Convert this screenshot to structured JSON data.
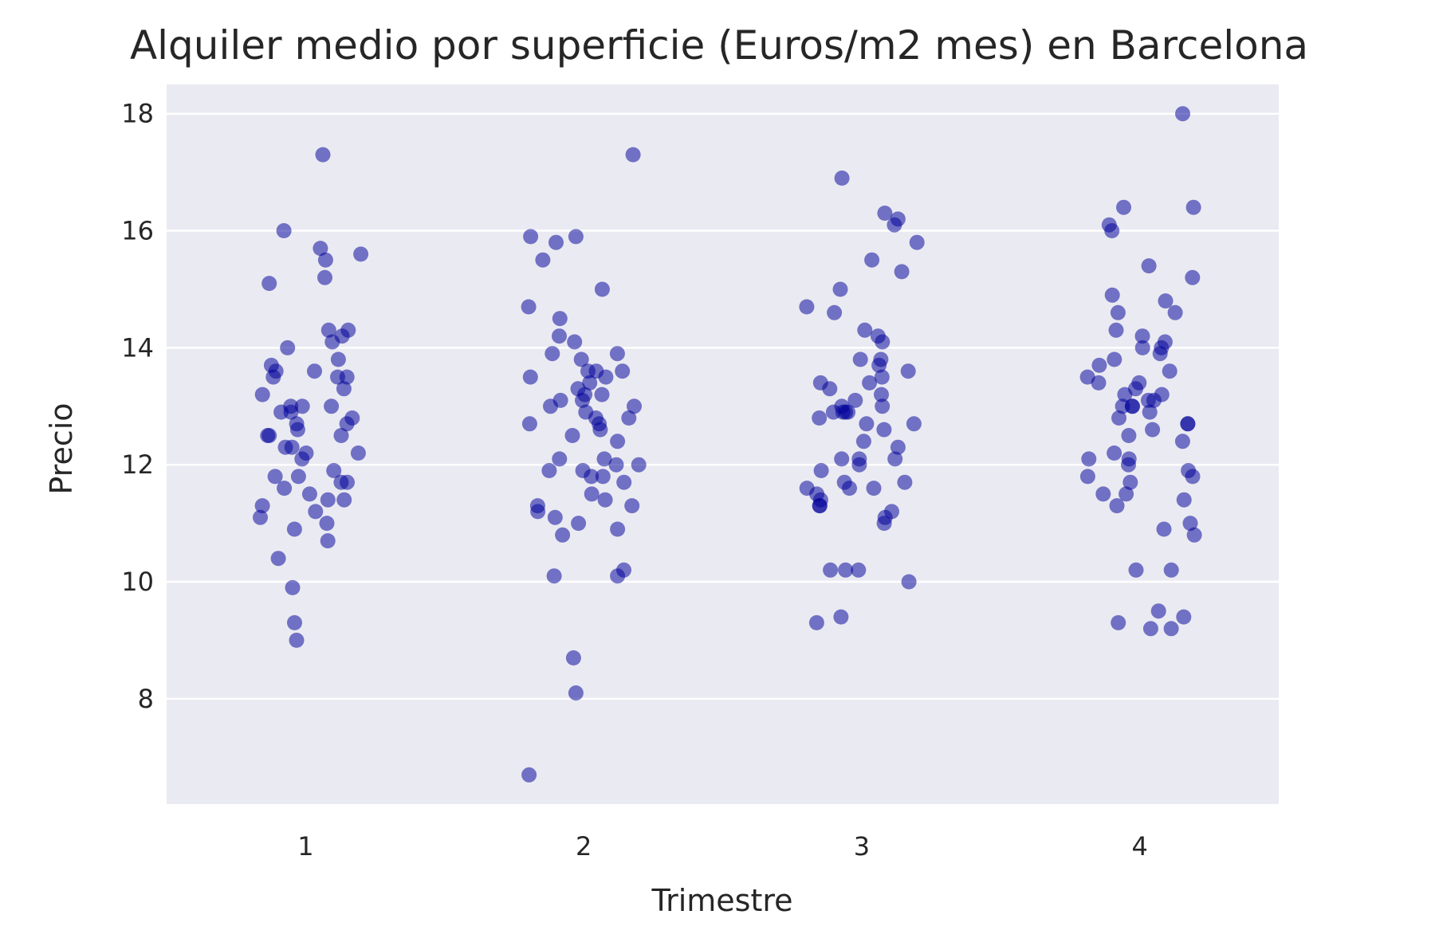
{
  "chart_data": {
    "type": "scatter",
    "subtype": "strip",
    "title": "Alquiler medio por superficie (Euros/m2 mes) en Barcelona",
    "xlabel": "Trimestre",
    "ylabel": "Precio",
    "categories": [
      "1",
      "2",
      "3",
      "4"
    ],
    "y_ticks": [
      8,
      10,
      12,
      14,
      16,
      18
    ],
    "ylim": [
      6.2,
      18.5
    ],
    "grid": true,
    "grid_axis": "y",
    "background_color": "#eaeaf2",
    "point_color": "#00008b",
    "point_alpha": 0.55,
    "points": [
      {
        "x": "1",
        "y": [
          17.3,
          16.0,
          15.7,
          15.6,
          15.5,
          15.2,
          15.1,
          14.3,
          14.3,
          14.2,
          14.1,
          14.0,
          13.8,
          13.7,
          13.6,
          13.6,
          13.5,
          13.5,
          13.5,
          13.3,
          13.2,
          13.0,
          13.0,
          13.0,
          12.9,
          12.9,
          12.8,
          12.7,
          12.7,
          12.6,
          12.5,
          12.5,
          12.5,
          12.3,
          12.3,
          12.2,
          12.2,
          12.1,
          11.9,
          11.8,
          11.8,
          11.7,
          11.7,
          11.6,
          11.5,
          11.4,
          11.4,
          11.3,
          11.2,
          11.1,
          11.0,
          10.9,
          10.7,
          10.4,
          9.9,
          9.3,
          9.0
        ]
      },
      {
        "x": "2",
        "y": [
          17.3,
          15.9,
          15.9,
          15.8,
          15.5,
          15.0,
          14.7,
          14.5,
          14.2,
          14.1,
          13.9,
          13.9,
          13.8,
          13.6,
          13.6,
          13.6,
          13.5,
          13.5,
          13.4,
          13.3,
          13.2,
          13.2,
          13.1,
          13.1,
          13.0,
          13.0,
          12.9,
          12.8,
          12.8,
          12.7,
          12.7,
          12.6,
          12.5,
          12.4,
          12.1,
          12.1,
          12.0,
          12.0,
          11.9,
          11.9,
          11.8,
          11.8,
          11.7,
          11.5,
          11.4,
          11.3,
          11.3,
          11.2,
          11.1,
          11.0,
          10.9,
          10.8,
          10.2,
          10.1,
          10.1,
          8.7,
          8.1,
          6.7
        ]
      },
      {
        "x": "3",
        "y": [
          16.9,
          16.3,
          16.2,
          16.1,
          15.8,
          15.5,
          15.3,
          15.0,
          14.7,
          14.6,
          14.3,
          14.2,
          14.1,
          13.8,
          13.8,
          13.7,
          13.6,
          13.5,
          13.4,
          13.4,
          13.3,
          13.2,
          13.1,
          13.0,
          13.0,
          12.9,
          12.9,
          12.9,
          12.9,
          12.8,
          12.7,
          12.7,
          12.6,
          12.4,
          12.3,
          12.1,
          12.1,
          12.1,
          12.0,
          11.9,
          11.7,
          11.7,
          11.6,
          11.6,
          11.6,
          11.5,
          11.4,
          11.3,
          11.3,
          11.2,
          11.1,
          11.0,
          10.2,
          10.2,
          10.2,
          10.0,
          9.4,
          9.3
        ]
      },
      {
        "x": "4",
        "y": [
          18.0,
          16.4,
          16.4,
          16.1,
          16.0,
          15.4,
          15.2,
          14.9,
          14.8,
          14.6,
          14.6,
          14.3,
          14.2,
          14.1,
          14.0,
          14.0,
          13.9,
          13.8,
          13.7,
          13.6,
          13.5,
          13.4,
          13.4,
          13.3,
          13.2,
          13.2,
          13.1,
          13.1,
          13.0,
          13.0,
          13.0,
          12.9,
          12.8,
          12.7,
          12.7,
          12.6,
          12.5,
          12.4,
          12.2,
          12.1,
          12.1,
          12.0,
          11.9,
          11.8,
          11.8,
          11.7,
          11.5,
          11.5,
          11.4,
          11.3,
          11.0,
          10.9,
          10.8,
          10.2,
          10.2,
          9.5,
          9.4,
          9.3,
          9.2,
          9.2
        ]
      }
    ]
  }
}
